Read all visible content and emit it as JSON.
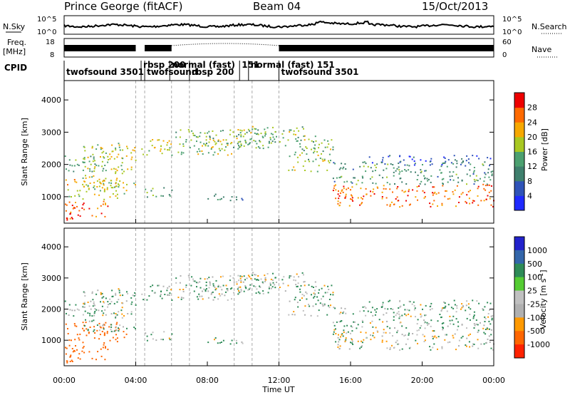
{
  "header": {
    "station": "Prince George (fitACF)",
    "beam": "Beam 04",
    "date": "15/Oct/2013"
  },
  "chart_data": {
    "type": "heatmap",
    "x": {
      "label": "Time UT",
      "ticks": [
        "00:00",
        "04:00",
        "08:00",
        "12:00",
        "16:00",
        "20:00",
        "00:00"
      ],
      "range_hours": [
        0,
        24
      ]
    },
    "mode_change_hours": [
      4.0,
      4.5,
      6.0,
      7.0,
      9.5,
      10.5,
      12.0
    ],
    "cpid": {
      "label": "CPID",
      "segments": [
        {
          "label": "twofsound  3501",
          "start": 0.0,
          "row": 1
        },
        {
          "label": "rbsp  200",
          "start": 4.3,
          "row": 0
        },
        {
          "label": "twofsound",
          "start": 4.5,
          "row": 1
        },
        {
          "label": "normal (fast)",
          "start": 5.9,
          "row": 0
        },
        {
          "label": "rbsp 200",
          "start": 7.0,
          "row": 1
        },
        {
          "label": "151",
          "start": 9.8,
          "row": 0
        },
        {
          "label": "normal (fast)  151",
          "start": 10.3,
          "row": 0
        },
        {
          "label": "twofsound  3501",
          "start": 12.0,
          "row": 1
        }
      ]
    },
    "noise_panel": {
      "left_label": "N.Sky",
      "right_label": "N.Search",
      "left_ticks": [
        "10^5",
        "10^0"
      ],
      "right_ticks": [
        "10^5",
        "10^0"
      ]
    },
    "freq_panel": {
      "left_label": "Freq.",
      "left_unit": "[MHz]",
      "right_label": "Nave",
      "left_ticks": [
        18,
        8
      ],
      "right_ticks": [
        60,
        0
      ]
    },
    "panels": [
      {
        "name": "power",
        "ylabel": "Slant Range [km]",
        "yticks": [
          1000,
          2000,
          3000,
          4000
        ],
        "ylim": [
          180,
          4600
        ],
        "colorbar": {
          "label": "Power [dB]",
          "ticks": [
            4,
            8,
            12,
            16,
            20,
            24,
            28
          ],
          "range": [
            0,
            32
          ],
          "colors": [
            "#1f2aff",
            "#2f53b8",
            "#3f7f6d",
            "#4ca070",
            "#a8c822",
            "#f6a800",
            "#ff6a00",
            "#ee0000"
          ]
        }
      },
      {
        "name": "velocity",
        "ylabel": "Slant Range [km]",
        "yticks": [
          1000,
          2000,
          3000,
          4000
        ],
        "ylim": [
          180,
          4600
        ],
        "colorbar": {
          "label": "Velocity  [m s",
          "label_sup": "-1",
          "label_end": "]",
          "ticks": [
            1000,
            500,
            100,
            25,
            -25,
            -100,
            -500,
            -1000
          ],
          "colors": [
            "#2222cc",
            "#3366aa",
            "#2e8b57",
            "#55cc33",
            "#c0c0c0",
            "#b0b0b0",
            "#ff9900",
            "#ff6600",
            "#ff2200"
          ]
        }
      }
    ],
    "echo_regions": [
      {
        "t0": 0.0,
        "t1": 2.5,
        "r0": 300,
        "r1": 900,
        "power": 27,
        "vel": -400
      },
      {
        "t0": 0.0,
        "t1": 3.5,
        "r0": 900,
        "r1": 1600,
        "power": 20,
        "vel": -200
      },
      {
        "t0": 0.0,
        "t1": 2.5,
        "r0": 1800,
        "r1": 2300,
        "power": 14,
        "vel": 25
      },
      {
        "t0": 1.0,
        "t1": 4.0,
        "r0": 1300,
        "r1": 2700,
        "power": 18,
        "vel": 25
      },
      {
        "t0": 4.3,
        "t1": 9.5,
        "r0": 2300,
        "r1": 2800,
        "power": 18,
        "vel": 25
      },
      {
        "t0": 6.0,
        "t1": 12.0,
        "r0": 2500,
        "r1": 3100,
        "power": 14,
        "vel": 25
      },
      {
        "t0": 9.5,
        "t1": 13.5,
        "r0": 2600,
        "r1": 3200,
        "power": 16,
        "vel": 0
      },
      {
        "t0": 4.3,
        "t1": 6.0,
        "r0": 1000,
        "r1": 1300,
        "power": 14,
        "vel": 25
      },
      {
        "t0": 8.0,
        "t1": 10.5,
        "r0": 900,
        "r1": 1100,
        "power": 10,
        "vel": 25
      },
      {
        "t0": 12.5,
        "t1": 15.0,
        "r0": 1800,
        "r1": 2900,
        "power": 16,
        "vel": 25
      },
      {
        "t0": 15.0,
        "t1": 24.0,
        "r0": 700,
        "r1": 1400,
        "power": 26,
        "vel": 0
      },
      {
        "t0": 15.0,
        "t1": 24.0,
        "r0": 1400,
        "r1": 2100,
        "power": 12,
        "vel": 25
      },
      {
        "t0": 17.0,
        "t1": 24.0,
        "r0": 2000,
        "r1": 2300,
        "power": 6,
        "vel": 25
      }
    ]
  }
}
